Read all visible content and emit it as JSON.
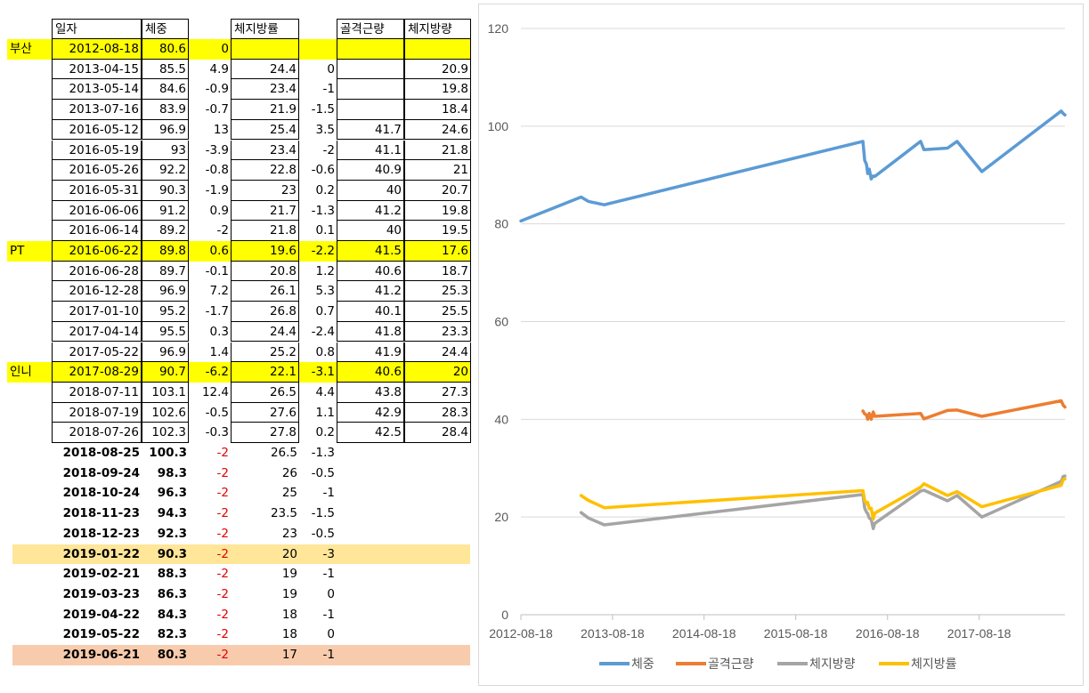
{
  "sheet": {
    "headers": {
      "date": "일자",
      "weight": "체중",
      "fat_rate": "체지방률",
      "muscle": "골격근량",
      "fat_mass": "체지방량"
    },
    "rows": [
      {
        "label": "부산",
        "date": "2012-08-18",
        "weight": "80.6",
        "dw": "0",
        "fr": "",
        "dfr": "",
        "mu": "",
        "fm": "",
        "style": "yellow-main"
      },
      {
        "label": "",
        "date": "2013-04-15",
        "weight": "85.5",
        "dw": "4.9",
        "fr": "24.4",
        "dfr": "0",
        "mu": "",
        "fm": "20.9",
        "style": "plain"
      },
      {
        "label": "",
        "date": "2013-05-14",
        "weight": "84.6",
        "dw": "-0.9",
        "fr": "23.4",
        "dfr": "-1",
        "mu": "",
        "fm": "19.8",
        "style": "plain"
      },
      {
        "label": "",
        "date": "2013-07-16",
        "weight": "83.9",
        "dw": "-0.7",
        "fr": "21.9",
        "dfr": "-1.5",
        "mu": "",
        "fm": "18.4",
        "style": "plain"
      },
      {
        "label": "",
        "date": "2016-05-12",
        "weight": "96.9",
        "dw": "13",
        "fr": "25.4",
        "dfr": "3.5",
        "mu": "41.7",
        "fm": "24.6",
        "style": "plain"
      },
      {
        "label": "",
        "date": "2016-05-19",
        "weight": "93",
        "dw": "-3.9",
        "fr": "23.4",
        "dfr": "-2",
        "mu": "41.1",
        "fm": "21.8",
        "style": "plain"
      },
      {
        "label": "",
        "date": "2016-05-26",
        "weight": "92.2",
        "dw": "-0.8",
        "fr": "22.8",
        "dfr": "-0.6",
        "mu": "40.9",
        "fm": "21",
        "style": "plain"
      },
      {
        "label": "",
        "date": "2016-05-31",
        "weight": "90.3",
        "dw": "-1.9",
        "fr": "23",
        "dfr": "0.2",
        "mu": "40",
        "fm": "20.7",
        "style": "plain"
      },
      {
        "label": "",
        "date": "2016-06-06",
        "weight": "91.2",
        "dw": "0.9",
        "fr": "21.7",
        "dfr": "-1.3",
        "mu": "41.2",
        "fm": "19.8",
        "style": "plain"
      },
      {
        "label": "",
        "date": "2016-06-14",
        "weight": "89.2",
        "dw": "-2",
        "fr": "21.8",
        "dfr": "0.1",
        "mu": "40",
        "fm": "19.5",
        "style": "plain"
      },
      {
        "label": "PT",
        "date": "2016-06-22",
        "weight": "89.8",
        "dw": "0.6",
        "fr": "19.6",
        "dfr": "-2.2",
        "mu": "41.5",
        "fm": "17.6",
        "style": "yellow-full"
      },
      {
        "label": "",
        "date": "2016-06-28",
        "weight": "89.7",
        "dw": "-0.1",
        "fr": "20.8",
        "dfr": "1.2",
        "mu": "40.6",
        "fm": "18.7",
        "style": "plain"
      },
      {
        "label": "",
        "date": "2016-12-28",
        "weight": "96.9",
        "dw": "7.2",
        "fr": "26.1",
        "dfr": "5.3",
        "mu": "41.2",
        "fm": "25.3",
        "style": "plain"
      },
      {
        "label": "",
        "date": "2017-01-10",
        "weight": "95.2",
        "dw": "-1.7",
        "fr": "26.8",
        "dfr": "0.7",
        "mu": "40.1",
        "fm": "25.5",
        "style": "plain"
      },
      {
        "label": "",
        "date": "2017-04-14",
        "weight": "95.5",
        "dw": "0.3",
        "fr": "24.4",
        "dfr": "-2.4",
        "mu": "41.8",
        "fm": "23.3",
        "style": "plain"
      },
      {
        "label": "",
        "date": "2017-05-22",
        "weight": "96.9",
        "dw": "1.4",
        "fr": "25.2",
        "dfr": "0.8",
        "mu": "41.9",
        "fm": "24.4",
        "style": "plain"
      },
      {
        "label": "인니",
        "date": "2017-08-29",
        "weight": "90.7",
        "dw": "-6.2",
        "fr": "22.1",
        "dfr": "-3.1",
        "mu": "40.6",
        "fm": "20",
        "style": "yellow-full"
      },
      {
        "label": "",
        "date": "2018-07-11",
        "weight": "103.1",
        "dw": "12.4",
        "fr": "26.5",
        "dfr": "4.4",
        "mu": "43.8",
        "fm": "27.3",
        "style": "plain"
      },
      {
        "label": "",
        "date": "2018-07-19",
        "weight": "102.6",
        "dw": "-0.5",
        "fr": "27.6",
        "dfr": "1.1",
        "mu": "42.9",
        "fm": "28.3",
        "style": "plain"
      },
      {
        "label": "",
        "date": "2018-07-26",
        "weight": "102.3",
        "dw": "-0.3",
        "fr": "27.8",
        "dfr": "0.2",
        "mu": "42.5",
        "fm": "28.4",
        "style": "plain"
      }
    ],
    "projections": [
      {
        "date": "2018-08-25",
        "weight": "100.3",
        "dw": "-2",
        "fr": "26.5",
        "dfr": "-1.3",
        "style": ""
      },
      {
        "date": "2018-09-24",
        "weight": "98.3",
        "dw": "-2",
        "fr": "26",
        "dfr": "-0.5",
        "style": ""
      },
      {
        "date": "2018-10-24",
        "weight": "96.3",
        "dw": "-2",
        "fr": "25",
        "dfr": "-1",
        "style": ""
      },
      {
        "date": "2018-11-23",
        "weight": "94.3",
        "dw": "-2",
        "fr": "23.5",
        "dfr": "-1.5",
        "style": ""
      },
      {
        "date": "2018-12-23",
        "weight": "92.3",
        "dw": "-2",
        "fr": "23",
        "dfr": "-0.5",
        "style": ""
      },
      {
        "date": "2019-01-22",
        "weight": "90.3",
        "dw": "-2",
        "fr": "20",
        "dfr": "-3",
        "style": "peach"
      },
      {
        "date": "2019-02-21",
        "weight": "88.3",
        "dw": "-2",
        "fr": "19",
        "dfr": "-1",
        "style": ""
      },
      {
        "date": "2019-03-23",
        "weight": "86.3",
        "dw": "-2",
        "fr": "19",
        "dfr": "0",
        "style": ""
      },
      {
        "date": "2019-04-22",
        "weight": "84.3",
        "dw": "-2",
        "fr": "18",
        "dfr": "-1",
        "style": ""
      },
      {
        "date": "2019-05-22",
        "weight": "82.3",
        "dw": "-2",
        "fr": "18",
        "dfr": "0",
        "style": ""
      },
      {
        "date": "2019-06-21",
        "weight": "80.3",
        "dw": "-2",
        "fr": "17",
        "dfr": "-1",
        "style": "salmon"
      }
    ]
  },
  "chart_data": {
    "type": "line",
    "ylim": [
      0,
      120
    ],
    "yticks": [
      "0",
      "20",
      "40",
      "60",
      "80",
      "100",
      "120"
    ],
    "xlim": [
      "2012-08-18",
      "2018-07-26"
    ],
    "xtick_labels": [
      "2012-08-18",
      "2013-08-18",
      "2014-08-18",
      "2015-08-18",
      "2016-08-18",
      "2017-08-18"
    ],
    "grid": "horizontal",
    "legend_position": "bottom",
    "x": [
      "2012-08-18",
      "2013-04-15",
      "2013-05-14",
      "2013-07-16",
      "2016-05-12",
      "2016-05-19",
      "2016-05-26",
      "2016-05-31",
      "2016-06-06",
      "2016-06-14",
      "2016-06-22",
      "2016-06-28",
      "2016-12-28",
      "2017-01-10",
      "2017-04-14",
      "2017-05-22",
      "2017-08-29",
      "2018-07-11",
      "2018-07-19",
      "2018-07-26"
    ],
    "series": [
      {
        "name": "체중",
        "color": "#5b9bd5",
        "values": [
          80.6,
          85.5,
          84.6,
          83.9,
          96.9,
          93,
          92.2,
          90.3,
          91.2,
          89.2,
          89.8,
          89.7,
          96.9,
          95.2,
          95.5,
          96.9,
          90.7,
          103.1,
          102.6,
          102.3
        ]
      },
      {
        "name": "골격근량",
        "color": "#ed7d31",
        "values": [
          null,
          null,
          null,
          null,
          41.7,
          41.1,
          40.9,
          40,
          41.2,
          40,
          41.5,
          40.6,
          41.2,
          40.1,
          41.8,
          41.9,
          40.6,
          43.8,
          42.9,
          42.5
        ]
      },
      {
        "name": "체지방량",
        "color": "#a5a5a5",
        "values": [
          null,
          20.9,
          19.8,
          18.4,
          24.6,
          21.8,
          21,
          20.7,
          19.8,
          19.5,
          17.6,
          18.7,
          25.3,
          25.5,
          23.3,
          24.4,
          20,
          27.3,
          28.3,
          28.4
        ]
      },
      {
        "name": "체지방률",
        "color": "#ffc000",
        "values": [
          null,
          24.4,
          23.4,
          21.9,
          25.4,
          23.4,
          22.8,
          23,
          21.7,
          21.8,
          19.6,
          20.8,
          26.1,
          26.8,
          24.4,
          25.2,
          22.1,
          26.5,
          27.6,
          27.8
        ]
      }
    ]
  }
}
